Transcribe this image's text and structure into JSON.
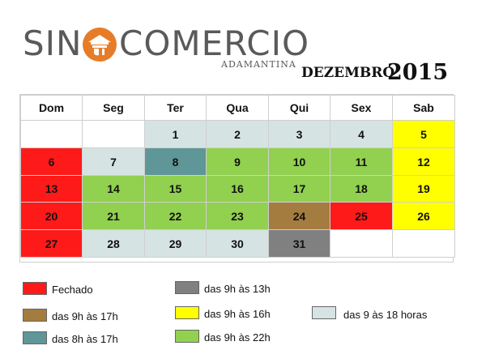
{
  "logo": {
    "left": "SIN",
    "right": "COMERCIO",
    "subtitle": "ADAMANTINA",
    "brand_color": "#e77c28",
    "emblem_icon": "building-emblem-icon"
  },
  "title": {
    "month": "DEZEMBRO",
    "year": "2015"
  },
  "colors": {
    "closed": "#ff1a1a",
    "h9_13": "#808080",
    "h9_17": "#a47c3f",
    "h9_16": "#ffff00",
    "h9_18": "#d6e3e3",
    "h8_17": "#5f9698",
    "h9_22": "#92d050",
    "none": "#ffffff"
  },
  "calendar": {
    "weekdays": [
      "Dom",
      "Seg",
      "Ter",
      "Qua",
      "Qui",
      "Sex",
      "Sab"
    ],
    "weeks": [
      [
        {
          "d": "",
          "s": "none"
        },
        {
          "d": "",
          "s": "none"
        },
        {
          "d": "1",
          "s": "h9_18"
        },
        {
          "d": "2",
          "s": "h9_18"
        },
        {
          "d": "3",
          "s": "h9_18"
        },
        {
          "d": "4",
          "s": "h9_18"
        },
        {
          "d": "5",
          "s": "h9_16"
        }
      ],
      [
        {
          "d": "6",
          "s": "closed"
        },
        {
          "d": "7",
          "s": "h9_18"
        },
        {
          "d": "8",
          "s": "h8_17"
        },
        {
          "d": "9",
          "s": "h9_22"
        },
        {
          "d": "10",
          "s": "h9_22"
        },
        {
          "d": "11",
          "s": "h9_22"
        },
        {
          "d": "12",
          "s": "h9_16"
        }
      ],
      [
        {
          "d": "13",
          "s": "closed"
        },
        {
          "d": "14",
          "s": "h9_22"
        },
        {
          "d": "15",
          "s": "h9_22"
        },
        {
          "d": "16",
          "s": "h9_22"
        },
        {
          "d": "17",
          "s": "h9_22"
        },
        {
          "d": "18",
          "s": "h9_22"
        },
        {
          "d": "19",
          "s": "h9_16"
        }
      ],
      [
        {
          "d": "20",
          "s": "closed"
        },
        {
          "d": "21",
          "s": "h9_22"
        },
        {
          "d": "22",
          "s": "h9_22"
        },
        {
          "d": "23",
          "s": "h9_22"
        },
        {
          "d": "24",
          "s": "h9_17"
        },
        {
          "d": "25",
          "s": "closed"
        },
        {
          "d": "26",
          "s": "h9_16"
        }
      ],
      [
        {
          "d": "27",
          "s": "closed"
        },
        {
          "d": "28",
          "s": "h9_18"
        },
        {
          "d": "29",
          "s": "h9_18"
        },
        {
          "d": "30",
          "s": "h9_18"
        },
        {
          "d": "31",
          "s": "h9_13"
        },
        {
          "d": "",
          "s": "none"
        },
        {
          "d": "",
          "s": "none"
        }
      ]
    ]
  },
  "legend": [
    {
      "key": "closed",
      "label": "Fechado"
    },
    {
      "key": "h9_17",
      "label": "das 9h às 17h"
    },
    {
      "key": "h8_17",
      "label": "das 8h às 17h"
    },
    {
      "key": "h9_13",
      "label": "das 9h às 13h"
    },
    {
      "key": "h9_16",
      "label": "das 9h às 16h"
    },
    {
      "key": "h9_22",
      "label": "das 9h às 22h"
    },
    {
      "key": "h9_18",
      "label": "das 9 às 18 horas"
    }
  ]
}
